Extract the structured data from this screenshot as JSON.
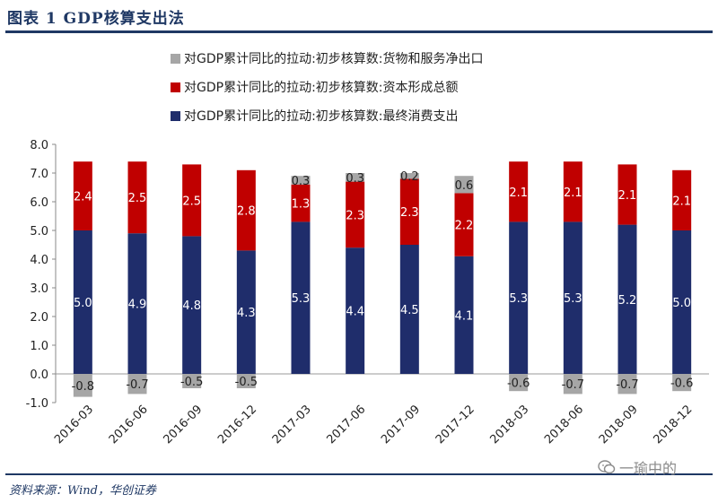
{
  "figure": {
    "title": "图表 1   GDP核算支出法",
    "source": "资料来源：Wind，华创证券",
    "watermark_text": "一瑜中的"
  },
  "colors": {
    "header": "#1f3864",
    "net_exports": "#a6a6a6",
    "capital": "#c00000",
    "consumption": "#1f2d6b"
  },
  "chart_data": {
    "type": "bar",
    "stacked": true,
    "categories": [
      "2016-03",
      "2016-06",
      "2016-09",
      "2016-12",
      "2017-03",
      "2017-06",
      "2017-09",
      "2017-12",
      "2018-03",
      "2018-06",
      "2018-09",
      "2018-12"
    ],
    "series": [
      {
        "name": "对GDP累计同比的拉动:初步核算数:货物和服务净出口",
        "color": "#a6a6a6",
        "values": [
          -0.8,
          -0.7,
          -0.5,
          -0.5,
          0.3,
          0.3,
          0.2,
          0.6,
          -0.6,
          -0.7,
          -0.7,
          -0.6
        ]
      },
      {
        "name": "对GDP累计同比的拉动:初步核算数:资本形成总额",
        "color": "#c00000",
        "values": [
          2.4,
          2.5,
          2.5,
          2.8,
          1.3,
          2.3,
          2.3,
          2.2,
          2.1,
          2.1,
          2.1,
          2.1
        ]
      },
      {
        "name": "对GDP累计同比的拉动:初步核算数:最终消费支出",
        "color": "#1f2d6b",
        "values": [
          5.0,
          4.9,
          4.8,
          4.3,
          5.3,
          4.4,
          4.5,
          4.1,
          5.3,
          5.3,
          5.2,
          5.0
        ]
      }
    ],
    "data_labels": {
      "net_exports": [
        "-0.8",
        "-0.7",
        "-0.5",
        "-0.5",
        "0.3",
        "0.3",
        "0.2",
        "0.6",
        "-0.6",
        "-0.7",
        "-0.7",
        "-0.6"
      ],
      "capital": [
        "2.4",
        "2.5",
        "2.5",
        "2.8",
        "1.3",
        "2.3",
        "2.3",
        "2.2",
        "2.1",
        "2.1",
        "2.1",
        "2.1"
      ],
      "consumption": [
        "5.0",
        "4.9",
        "4.8",
        "4.3",
        "5.3",
        "4.4",
        "4.5",
        "4.1",
        "5.3",
        "5.3",
        "5.2",
        "5.0"
      ]
    },
    "ylim": [
      -1.0,
      8.0
    ],
    "yticks": [
      "-1.0",
      "0.0",
      "1.0",
      "2.0",
      "3.0",
      "4.0",
      "5.0",
      "6.0",
      "7.0",
      "8.0"
    ],
    "grid": false,
    "legend_position": "top"
  }
}
